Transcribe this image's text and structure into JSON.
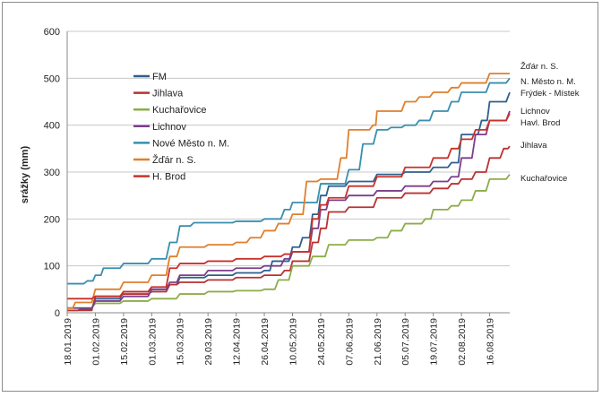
{
  "chart_data": {
    "type": "line",
    "ylabel": "srážky (mm)",
    "xlabel": "",
    "ylim": [
      0,
      600
    ],
    "yticks": [
      0,
      100,
      200,
      300,
      400,
      500,
      600
    ],
    "xlim": [
      "2019-01-18",
      "2019-08-26"
    ],
    "xticks": [
      {
        "date": "2019-01-18",
        "label": "18.01.2019"
      },
      {
        "date": "2019-02-01",
        "label": "01.02.2019"
      },
      {
        "date": "2019-02-15",
        "label": "15.02.2019"
      },
      {
        "date": "2019-03-01",
        "label": "01.03.2019"
      },
      {
        "date": "2019-03-15",
        "label": "15.03.2019"
      },
      {
        "date": "2019-03-29",
        "label": "29.03.2019"
      },
      {
        "date": "2019-04-12",
        "label": "12.04.2019"
      },
      {
        "date": "2019-04-26",
        "label": "26.04.2019"
      },
      {
        "date": "2019-05-10",
        "label": "10.05.2019"
      },
      {
        "date": "2019-05-24",
        "label": "24.05.2019"
      },
      {
        "date": "2019-06-07",
        "label": "07.06.2019"
      },
      {
        "date": "2019-06-21",
        "label": "21.06.2019"
      },
      {
        "date": "2019-07-05",
        "label": "05.07.2019"
      },
      {
        "date": "2019-07-19",
        "label": "19.07.2019"
      },
      {
        "date": "2019-08-02",
        "label": "02.08.2019"
      },
      {
        "date": "2019-08-16",
        "label": "16.08.2019"
      }
    ],
    "grid": "horizontal",
    "legend_position": "upper-left inside plot",
    "series": [
      {
        "name": "FM",
        "end_label": "Frýdek - Místek",
        "color": "#2e5f8e",
        "points": [
          [
            "2019-01-18",
            5
          ],
          [
            "2019-01-25",
            8
          ],
          [
            "2019-02-01",
            30
          ],
          [
            "2019-02-15",
            45
          ],
          [
            "2019-03-01",
            50
          ],
          [
            "2019-03-10",
            60
          ],
          [
            "2019-03-15",
            75
          ],
          [
            "2019-03-29",
            80
          ],
          [
            "2019-04-12",
            85
          ],
          [
            "2019-04-26",
            90
          ],
          [
            "2019-04-30",
            110
          ],
          [
            "2019-05-10",
            140
          ],
          [
            "2019-05-15",
            160
          ],
          [
            "2019-05-20",
            210
          ],
          [
            "2019-05-24",
            250
          ],
          [
            "2019-05-28",
            270
          ],
          [
            "2019-06-07",
            280
          ],
          [
            "2019-06-21",
            295
          ],
          [
            "2019-07-05",
            300
          ],
          [
            "2019-07-19",
            310
          ],
          [
            "2019-07-28",
            320
          ],
          [
            "2019-08-02",
            380
          ],
          [
            "2019-08-12",
            410
          ],
          [
            "2019-08-16",
            450
          ],
          [
            "2019-08-26",
            470
          ]
        ]
      },
      {
        "name": "Jihlava",
        "end_label": "Jihlava",
        "color": "#b83232",
        "points": [
          [
            "2019-01-18",
            5
          ],
          [
            "2019-02-01",
            35
          ],
          [
            "2019-02-15",
            40
          ],
          [
            "2019-03-01",
            45
          ],
          [
            "2019-03-10",
            60
          ],
          [
            "2019-03-15",
            65
          ],
          [
            "2019-03-29",
            70
          ],
          [
            "2019-04-12",
            75
          ],
          [
            "2019-04-26",
            80
          ],
          [
            "2019-05-06",
            90
          ],
          [
            "2019-05-10",
            110
          ],
          [
            "2019-05-20",
            150
          ],
          [
            "2019-05-24",
            180
          ],
          [
            "2019-05-28",
            215
          ],
          [
            "2019-06-07",
            225
          ],
          [
            "2019-06-21",
            245
          ],
          [
            "2019-07-05",
            255
          ],
          [
            "2019-07-19",
            265
          ],
          [
            "2019-07-28",
            275
          ],
          [
            "2019-08-02",
            285
          ],
          [
            "2019-08-09",
            300
          ],
          [
            "2019-08-16",
            330
          ],
          [
            "2019-08-23",
            350
          ],
          [
            "2019-08-26",
            355
          ]
        ]
      },
      {
        "name": "Kuchařovice",
        "end_label": "Kuchařovice",
        "color": "#8cad4a",
        "points": [
          [
            "2019-01-18",
            10
          ],
          [
            "2019-02-01",
            20
          ],
          [
            "2019-02-15",
            25
          ],
          [
            "2019-03-01",
            30
          ],
          [
            "2019-03-15",
            40
          ],
          [
            "2019-03-29",
            45
          ],
          [
            "2019-04-12",
            47
          ],
          [
            "2019-04-26",
            50
          ],
          [
            "2019-05-03",
            70
          ],
          [
            "2019-05-10",
            100
          ],
          [
            "2019-05-20",
            120
          ],
          [
            "2019-05-28",
            145
          ],
          [
            "2019-06-07",
            155
          ],
          [
            "2019-06-21",
            160
          ],
          [
            "2019-06-28",
            175
          ],
          [
            "2019-07-05",
            190
          ],
          [
            "2019-07-15",
            200
          ],
          [
            "2019-07-19",
            220
          ],
          [
            "2019-07-28",
            228
          ],
          [
            "2019-08-02",
            240
          ],
          [
            "2019-08-09",
            260
          ],
          [
            "2019-08-16",
            285
          ],
          [
            "2019-08-26",
            295
          ]
        ]
      },
      {
        "name": "Lichnov",
        "end_label": "Lichnov",
        "color": "#7b3f8c",
        "points": [
          [
            "2019-01-18",
            10
          ],
          [
            "2019-02-01",
            25
          ],
          [
            "2019-02-15",
            35
          ],
          [
            "2019-03-01",
            50
          ],
          [
            "2019-03-10",
            65
          ],
          [
            "2019-03-15",
            80
          ],
          [
            "2019-03-29",
            90
          ],
          [
            "2019-04-12",
            95
          ],
          [
            "2019-04-26",
            100
          ],
          [
            "2019-05-06",
            115
          ],
          [
            "2019-05-10",
            130
          ],
          [
            "2019-05-20",
            180
          ],
          [
            "2019-05-24",
            220
          ],
          [
            "2019-05-28",
            240
          ],
          [
            "2019-06-07",
            250
          ],
          [
            "2019-06-21",
            260
          ],
          [
            "2019-07-05",
            270
          ],
          [
            "2019-07-19",
            280
          ],
          [
            "2019-07-28",
            290
          ],
          [
            "2019-08-02",
            330
          ],
          [
            "2019-08-09",
            380
          ],
          [
            "2019-08-16",
            410
          ],
          [
            "2019-08-26",
            430
          ]
        ]
      },
      {
        "name": "Nové Město n. M.",
        "end_label": "N. Město n. M.",
        "color": "#3a8fad",
        "points": [
          [
            "2019-01-18",
            62
          ],
          [
            "2019-01-28",
            68
          ],
          [
            "2019-02-01",
            80
          ],
          [
            "2019-02-05",
            95
          ],
          [
            "2019-02-15",
            105
          ],
          [
            "2019-03-01",
            115
          ],
          [
            "2019-03-10",
            150
          ],
          [
            "2019-03-15",
            185
          ],
          [
            "2019-03-22",
            192
          ],
          [
            "2019-04-12",
            195
          ],
          [
            "2019-04-26",
            200
          ],
          [
            "2019-05-06",
            220
          ],
          [
            "2019-05-10",
            235
          ],
          [
            "2019-05-24",
            275
          ],
          [
            "2019-06-07",
            305
          ],
          [
            "2019-06-14",
            360
          ],
          [
            "2019-06-21",
            390
          ],
          [
            "2019-06-28",
            395
          ],
          [
            "2019-07-05",
            400
          ],
          [
            "2019-07-12",
            410
          ],
          [
            "2019-07-19",
            430
          ],
          [
            "2019-07-28",
            450
          ],
          [
            "2019-08-02",
            470
          ],
          [
            "2019-08-16",
            490
          ],
          [
            "2019-08-26",
            500
          ]
        ]
      },
      {
        "name": "Žďár n. S.",
        "end_label": "Žďár n. S.",
        "color": "#e07f2e",
        "points": [
          [
            "2019-01-18",
            10
          ],
          [
            "2019-01-22",
            22
          ],
          [
            "2019-02-01",
            50
          ],
          [
            "2019-02-15",
            65
          ],
          [
            "2019-03-01",
            80
          ],
          [
            "2019-03-10",
            120
          ],
          [
            "2019-03-15",
            140
          ],
          [
            "2019-03-29",
            145
          ],
          [
            "2019-04-12",
            150
          ],
          [
            "2019-04-19",
            160
          ],
          [
            "2019-04-26",
            175
          ],
          [
            "2019-05-03",
            190
          ],
          [
            "2019-05-10",
            210
          ],
          [
            "2019-05-17",
            280
          ],
          [
            "2019-05-24",
            285
          ],
          [
            "2019-06-03",
            330
          ],
          [
            "2019-06-07",
            390
          ],
          [
            "2019-06-19",
            400
          ],
          [
            "2019-06-21",
            430
          ],
          [
            "2019-07-05",
            450
          ],
          [
            "2019-07-12",
            460
          ],
          [
            "2019-07-19",
            470
          ],
          [
            "2019-07-28",
            480
          ],
          [
            "2019-08-02",
            490
          ],
          [
            "2019-08-16",
            510
          ],
          [
            "2019-08-26",
            510
          ]
        ]
      },
      {
        "name": "H. Brod",
        "end_label": "Havl. Brod",
        "color": "#c8322a",
        "points": [
          [
            "2019-01-18",
            30
          ],
          [
            "2019-02-01",
            35
          ],
          [
            "2019-02-15",
            45
          ],
          [
            "2019-03-01",
            55
          ],
          [
            "2019-03-10",
            95
          ],
          [
            "2019-03-15",
            105
          ],
          [
            "2019-03-29",
            110
          ],
          [
            "2019-04-12",
            115
          ],
          [
            "2019-04-26",
            120
          ],
          [
            "2019-05-06",
            125
          ],
          [
            "2019-05-10",
            130
          ],
          [
            "2019-05-20",
            200
          ],
          [
            "2019-05-24",
            230
          ],
          [
            "2019-05-28",
            245
          ],
          [
            "2019-06-07",
            270
          ],
          [
            "2019-06-21",
            290
          ],
          [
            "2019-07-05",
            310
          ],
          [
            "2019-07-19",
            330
          ],
          [
            "2019-07-28",
            350
          ],
          [
            "2019-08-02",
            370
          ],
          [
            "2019-08-09",
            390
          ],
          [
            "2019-08-16",
            410
          ],
          [
            "2019-08-26",
            425
          ]
        ]
      }
    ]
  }
}
